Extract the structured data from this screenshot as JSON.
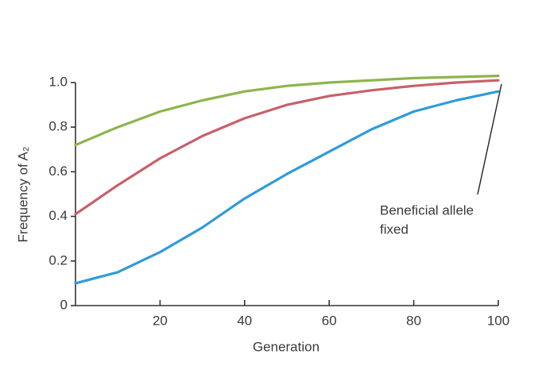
{
  "chart_data": {
    "type": "line",
    "xlabel": "Generation",
    "ylabel": "Frequency of A₂",
    "annotation": [
      "Beneficial allele",
      "fixed"
    ],
    "x": [
      0,
      10,
      20,
      30,
      40,
      50,
      60,
      70,
      80,
      90,
      100
    ],
    "series": [
      {
        "color": "#8db54c",
        "values": [
          0.72,
          0.8,
          0.87,
          0.92,
          0.96,
          0.985,
          1.0,
          1.01,
          1.02,
          1.025,
          1.03
        ]
      },
      {
        "color": "#c8606a",
        "values": [
          0.41,
          0.54,
          0.66,
          0.76,
          0.84,
          0.9,
          0.94,
          0.965,
          0.985,
          1.0,
          1.01
        ]
      },
      {
        "color": "#2f9bd9",
        "values": [
          0.1,
          0.15,
          0.24,
          0.35,
          0.48,
          0.59,
          0.69,
          0.79,
          0.87,
          0.92,
          0.96
        ]
      }
    ],
    "xlim": [
      0,
      100
    ],
    "xticks": [
      20,
      40,
      60,
      80,
      100
    ],
    "ylim": [
      0,
      1
    ],
    "yticks": [
      0,
      0.2,
      0.4,
      0.6,
      0.8,
      {
        "value": 1,
        "label": "1.0"
      }
    ]
  }
}
